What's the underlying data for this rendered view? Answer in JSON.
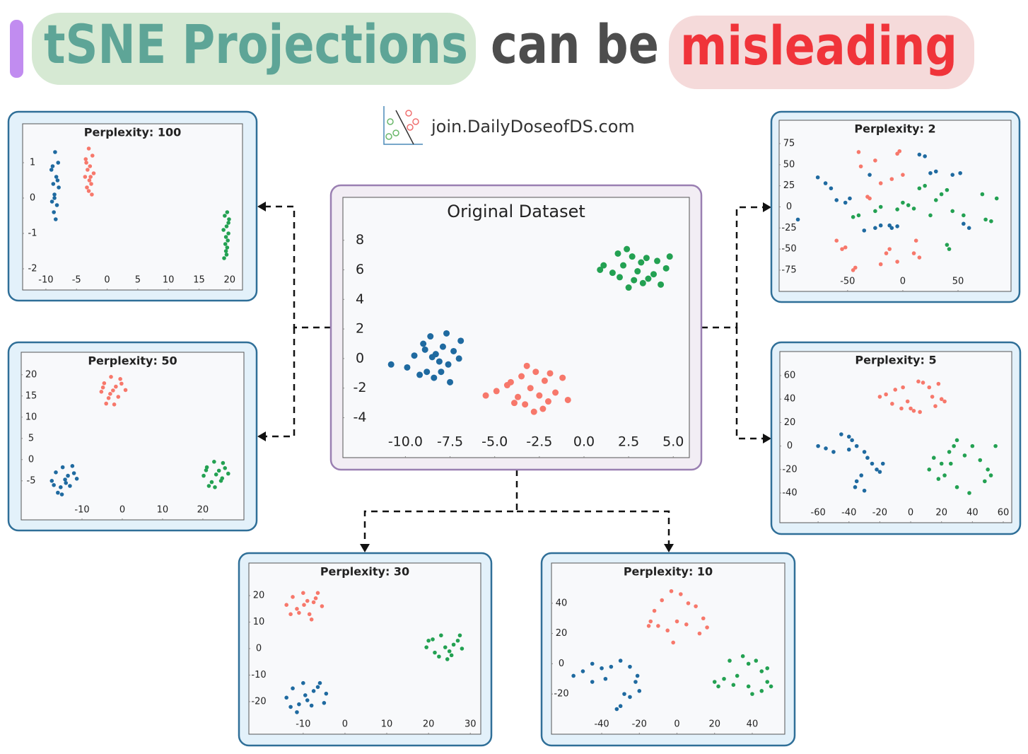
{
  "header": {
    "title": [
      "tSNE Projections",
      "can be",
      "misleading"
    ],
    "link": "join.DailyDoseofDS.com"
  },
  "chart_data": [
    {
      "type": "scatter",
      "title": "Original Dataset",
      "xlim": [
        -13.5,
        5.9
      ],
      "ylim": [
        -6.7,
        10.9
      ],
      "xticks": [
        {
          "value": -10,
          "label": "-10.0"
        },
        -7.5,
        {
          "value": -5,
          "label": "-5.0"
        },
        -2.5,
        {
          "value": 0,
          "label": "0.0"
        },
        2.5,
        {
          "value": 5,
          "label": "5.0"
        }
      ],
      "yticks": [
        8,
        6,
        4,
        2,
        0,
        -2,
        -4
      ],
      "series": [
        {
          "color": "#1f6aa0",
          "x": [
            -8.3,
            -9.0,
            -7.6,
            -8.8,
            -7.9,
            -9.5,
            -8.1,
            -7.3,
            -8.6,
            -9.9,
            -7.0,
            -8.4,
            -8.9,
            -7.7,
            -8.0,
            -9.2,
            -10.8,
            -6.9,
            -8.5,
            -7.5
          ],
          "values": [
            0.3,
            1.0,
            -0.4,
            -0.9,
            0.8,
            0.2,
            -0.2,
            0.5,
            1.5,
            -0.6,
            0.0,
            -1.3,
            0.6,
            1.7,
            -0.9,
            -1.1,
            -0.4,
            1.2,
            0.1,
            -1.6
          ]
        },
        {
          "color": "#f7786b",
          "x": [
            -3.0,
            -2.2,
            -3.7,
            -4.3,
            -1.6,
            -2.7,
            -3.3,
            -2.0,
            -4.9,
            -1.2,
            -3.5,
            -2.5,
            -3.9,
            -1.9,
            -2.8,
            -4.1,
            -0.9,
            -3.2,
            -2.3,
            -5.5
          ],
          "values": [
            -2.0,
            -1.5,
            -2.6,
            -1.8,
            -2.3,
            -0.9,
            -3.1,
            -2.9,
            -2.2,
            -1.3,
            -1.2,
            -2.5,
            -3.0,
            -1.0,
            -3.6,
            -1.6,
            -2.8,
            -0.5,
            -3.4,
            -2.5
          ]
        },
        {
          "color": "#23a152",
          "x": [
            3.0,
            2.2,
            3.6,
            4.1,
            1.6,
            2.7,
            3.3,
            2.0,
            4.6,
            1.1,
            3.5,
            2.5,
            3.9,
            1.9,
            2.8,
            4.3,
            0.9,
            3.2,
            2.4,
            4.8
          ],
          "values": [
            5.9,
            6.3,
            5.4,
            6.6,
            5.8,
            6.9,
            5.1,
            5.5,
            6.1,
            6.3,
            6.8,
            4.8,
            5.7,
            7.1,
            5.3,
            5.0,
            6.0,
            6.5,
            7.4,
            6.9
          ]
        }
      ]
    },
    {
      "type": "scatter",
      "title": "Perplexity: 100",
      "xlim": [
        -13.8,
        22.1
      ],
      "ylim": [
        -2.6,
        2.1
      ],
      "xticks": [
        -10,
        -5,
        0,
        5,
        10,
        15,
        20
      ],
      "yticks": [
        1,
        0,
        -1,
        -2
      ],
      "series": [
        {
          "color": "#1f6aa0",
          "x": [
            -8.5,
            -8.0,
            -9.1,
            -8.3,
            -8.8,
            -7.9,
            -8.6,
            -9.0,
            -8.2,
            -8.7,
            -8.4,
            -8.9,
            -8.1,
            -8.6
          ],
          "values": [
            1.3,
            1.0,
            0.8,
            0.6,
            0.4,
            0.3,
            0.1,
            -0.1,
            -0.2,
            -0.4,
            -0.6,
            0.9,
            0.5,
            0.0
          ]
        },
        {
          "color": "#f7786b",
          "x": [
            -3.0,
            -2.4,
            -3.5,
            -2.8,
            -3.2,
            -2.2,
            -3.6,
            -2.9,
            -2.6,
            -3.3,
            -3.0,
            -2.5,
            -3.4,
            -2.7
          ],
          "values": [
            1.4,
            1.2,
            1.1,
            0.9,
            0.8,
            0.7,
            0.6,
            0.5,
            0.4,
            0.3,
            0.2,
            0.1,
            1.0,
            0.6
          ]
        },
        {
          "color": "#23a152",
          "x": [
            19.6,
            19.2,
            19.9,
            19.5,
            19.0,
            19.8,
            19.4,
            19.7,
            19.3,
            19.6,
            19.5,
            19.1,
            19.8,
            19.4
          ],
          "values": [
            -0.4,
            -0.5,
            -0.6,
            -0.8,
            -0.9,
            -1.0,
            -1.1,
            -1.2,
            -1.3,
            -1.4,
            -1.6,
            -1.7,
            -0.7,
            -1.5
          ]
        }
      ]
    },
    {
      "type": "scatter",
      "title": "Perplexity: 50",
      "xlim": [
        -25.1,
        30.2
      ],
      "ylim": [
        -14.2,
        25.3
      ],
      "xticks": [
        -10,
        0,
        10,
        20
      ],
      "yticks": [
        20,
        15,
        10,
        5,
        0,
        -5
      ],
      "series": [
        {
          "color": "#f7786b",
          "x": [
            -2.3,
            -4.5,
            -0.2,
            -3.4,
            -1.0,
            -5.2,
            0.8,
            -2.8,
            -1.6,
            -4.0,
            -0.5,
            -3.0,
            -2.0,
            -4.8
          ],
          "values": [
            16.3,
            18.0,
            17.9,
            14.5,
            14.8,
            16.0,
            16.4,
            19.5,
            17.2,
            13.2,
            19.0,
            15.5,
            13.0,
            17.0
          ]
        },
        {
          "color": "#1f6aa0",
          "x": [
            -14.2,
            -16.5,
            -12.0,
            -15.3,
            -13.0,
            -17.5,
            -11.3,
            -14.8,
            -13.5,
            -16.0,
            -12.4,
            -15.0,
            -14.0,
            -17.0
          ],
          "values": [
            -4.7,
            -3.0,
            -3.2,
            -6.5,
            -6.2,
            -5.0,
            -4.5,
            -1.8,
            -3.8,
            -7.8,
            -1.5,
            -8.2,
            -5.5,
            -6.0
          ]
        },
        {
          "color": "#23a152",
          "x": [
            23.3,
            21.0,
            25.5,
            22.2,
            24.5,
            20.2,
            26.3,
            22.8,
            24.0,
            21.5,
            25.0,
            23.0,
            24.8,
            20.8
          ],
          "values": [
            -3.5,
            -1.8,
            -2.0,
            -5.3,
            -5.0,
            -3.8,
            -3.3,
            -0.5,
            -2.6,
            -6.2,
            -0.8,
            -6.5,
            -4.4,
            -2.5
          ]
        }
      ]
    },
    {
      "type": "scatter",
      "title": "Perplexity: 2",
      "xlim": [
        -112,
        98
      ],
      "ylim": [
        -100.2,
        102.7
      ],
      "xticks": [
        -50,
        0,
        50
      ],
      "yticks": [
        75,
        50,
        25,
        0,
        -25,
        -50,
        -75
      ],
      "series": [
        {
          "color": "#f7786b",
          "x": [
            -40,
            -38,
            -25,
            -20,
            -10,
            -5,
            -3,
            0,
            -30,
            -32,
            -60,
            -55,
            -52,
            -15,
            -12,
            10,
            12,
            -45,
            -43,
            -20,
            -5,
            15
          ],
          "values": [
            65,
            48,
            55,
            28,
            33,
            63,
            66,
            38,
            10,
            12,
            -40,
            -50,
            -48,
            -55,
            -50,
            -55,
            -40,
            -75,
            -72,
            -68,
            -65,
            -60
          ]
        },
        {
          "color": "#1f6aa0",
          "x": [
            -77,
            -70,
            -65,
            -60,
            -52,
            -48,
            -30,
            -25,
            -10,
            -5,
            15,
            20,
            25,
            30,
            45,
            52,
            55,
            60,
            -95,
            -35,
            -20,
            -12
          ],
          "values": [
            35,
            28,
            22,
            8,
            5,
            10,
            38,
            -25,
            -25,
            -23,
            62,
            60,
            40,
            42,
            38,
            40,
            -20,
            -25,
            -15,
            -28,
            -22,
            -22
          ]
        },
        {
          "color": "#23a152",
          "x": [
            -40,
            -45,
            -20,
            -5,
            0,
            5,
            10,
            15,
            20,
            30,
            35,
            40,
            45,
            55,
            75,
            80,
            85,
            72,
            40,
            42,
            -25,
            25
          ],
          "values": [
            -10,
            -12,
            0,
            -3,
            5,
            2,
            -2,
            22,
            25,
            8,
            15,
            20,
            -5,
            -10,
            -15,
            -17,
            10,
            15,
            -45,
            -50,
            -5,
            -10
          ]
        }
      ]
    },
    {
      "type": "scatter",
      "title": "Perplexity: 5",
      "xlim": [
        -84.8,
        65.5
      ],
      "ylim": [
        -65.3,
        80.5
      ],
      "xticks": [
        -60,
        -40,
        -20,
        0,
        20,
        40,
        60
      ],
      "yticks": [
        60,
        40,
        20,
        0,
        -20,
        -40
      ],
      "series": [
        {
          "color": "#f7786b",
          "x": [
            -20,
            -16,
            -10,
            -5,
            -2,
            0,
            5,
            8,
            12,
            18,
            20,
            22,
            -12,
            -6,
            2,
            6,
            14,
            16
          ],
          "values": [
            42,
            44,
            48,
            50,
            38,
            32,
            55,
            54,
            50,
            53,
            40,
            38,
            36,
            32,
            30,
            29,
            42,
            34
          ]
        },
        {
          "color": "#1f6aa0",
          "x": [
            -60,
            -55,
            -50,
            -45,
            -40,
            -38,
            -35,
            -30,
            -28,
            -25,
            -22,
            -20,
            -32,
            -35,
            -30,
            -18,
            -40,
            -36
          ],
          "values": [
            0,
            -2,
            -5,
            10,
            8,
            5,
            0,
            -5,
            -10,
            -15,
            -20,
            -22,
            -25,
            -30,
            -38,
            -15,
            -3,
            -35
          ]
        },
        {
          "color": "#23a152",
          "x": [
            12,
            15,
            20,
            25,
            28,
            30,
            35,
            40,
            45,
            50,
            52,
            55,
            22,
            30,
            38,
            18,
            48,
            26
          ],
          "values": [
            -20,
            -10,
            -15,
            -5,
            0,
            5,
            -8,
            0,
            -12,
            -20,
            -25,
            0,
            -25,
            -35,
            -40,
            -28,
            -30,
            -15
          ]
        }
      ]
    },
    {
      "type": "scatter",
      "title": "Perplexity: 30",
      "xlim": [
        -23,
        32.5
      ],
      "ylim": [
        -32.3,
        32.3
      ],
      "xticks": [
        -10,
        0,
        10,
        20,
        30
      ],
      "yticks": [
        20,
        10,
        0,
        -10,
        -20
      ],
      "series": [
        {
          "color": "#f7786b",
          "x": [
            -9.8,
            -12.5,
            -7,
            -11,
            -8.5,
            -14,
            -5.5,
            -10,
            -9,
            -13,
            -6.5,
            -11.5,
            -8,
            -7.5
          ],
          "values": [
            16.5,
            19.5,
            19,
            13.5,
            13,
            16.5,
            16,
            21,
            18,
            13,
            21,
            15,
            11,
            17.5
          ]
        },
        {
          "color": "#1f6aa0",
          "x": [
            -9.5,
            -12.5,
            -6.5,
            -11,
            -8,
            -14,
            -4.5,
            -10,
            -9,
            -13,
            -6,
            -11.5,
            -7.5,
            -5
          ],
          "values": [
            -17.6,
            -15,
            -14.5,
            -21,
            -21.5,
            -18.5,
            -17,
            -13,
            -19.5,
            -22,
            -13,
            -24,
            -16,
            -20.5
          ]
        },
        {
          "color": "#23a152",
          "x": [
            24,
            21,
            27,
            22.5,
            25.5,
            19.5,
            28,
            23,
            26,
            21.5,
            27.5,
            24.5,
            20,
            25
          ],
          "values": [
            0.5,
            3.5,
            3,
            -3,
            -2.5,
            0.5,
            0,
            5,
            1.5,
            -1.5,
            5,
            -4,
            3,
            -1
          ]
        }
      ]
    },
    {
      "type": "scatter",
      "title": "Perplexity: 10",
      "xlim": [
        -66.7,
        57.3
      ],
      "ylim": [
        -46.6,
        66.6
      ],
      "xticks": [
        -40,
        -20,
        0,
        20,
        40
      ],
      "yticks": [
        40,
        20,
        0,
        -20
      ],
      "series": [
        {
          "color": "#f7786b",
          "x": [
            -15,
            -12,
            -8,
            -3,
            2,
            6,
            10,
            14,
            16,
            12,
            5,
            0,
            -5,
            -10,
            -14,
            -2
          ],
          "values": [
            25,
            35,
            42,
            48,
            46,
            40,
            38,
            30,
            24,
            20,
            26,
            28,
            22,
            25,
            28,
            14
          ]
        },
        {
          "color": "#1f6aa0",
          "x": [
            -55,
            -50,
            -45,
            -40,
            -35,
            -30,
            -25,
            -22,
            -20,
            -25,
            -30,
            -28,
            -32,
            -45,
            -38,
            -21
          ],
          "values": [
            -8,
            -5,
            0,
            -3,
            -2,
            2,
            -2,
            -12,
            -18,
            -22,
            -28,
            -20,
            -30,
            -12,
            -10,
            -8
          ]
        },
        {
          "color": "#23a152",
          "x": [
            20,
            25,
            30,
            28,
            35,
            38,
            42,
            45,
            48,
            50,
            40,
            32,
            38,
            45,
            22,
            48
          ],
          "values": [
            -12,
            -10,
            -14,
            2,
            5,
            0,
            2,
            -5,
            -12,
            -15,
            -20,
            -8,
            -15,
            -18,
            -15,
            -3
          ]
        }
      ]
    }
  ]
}
